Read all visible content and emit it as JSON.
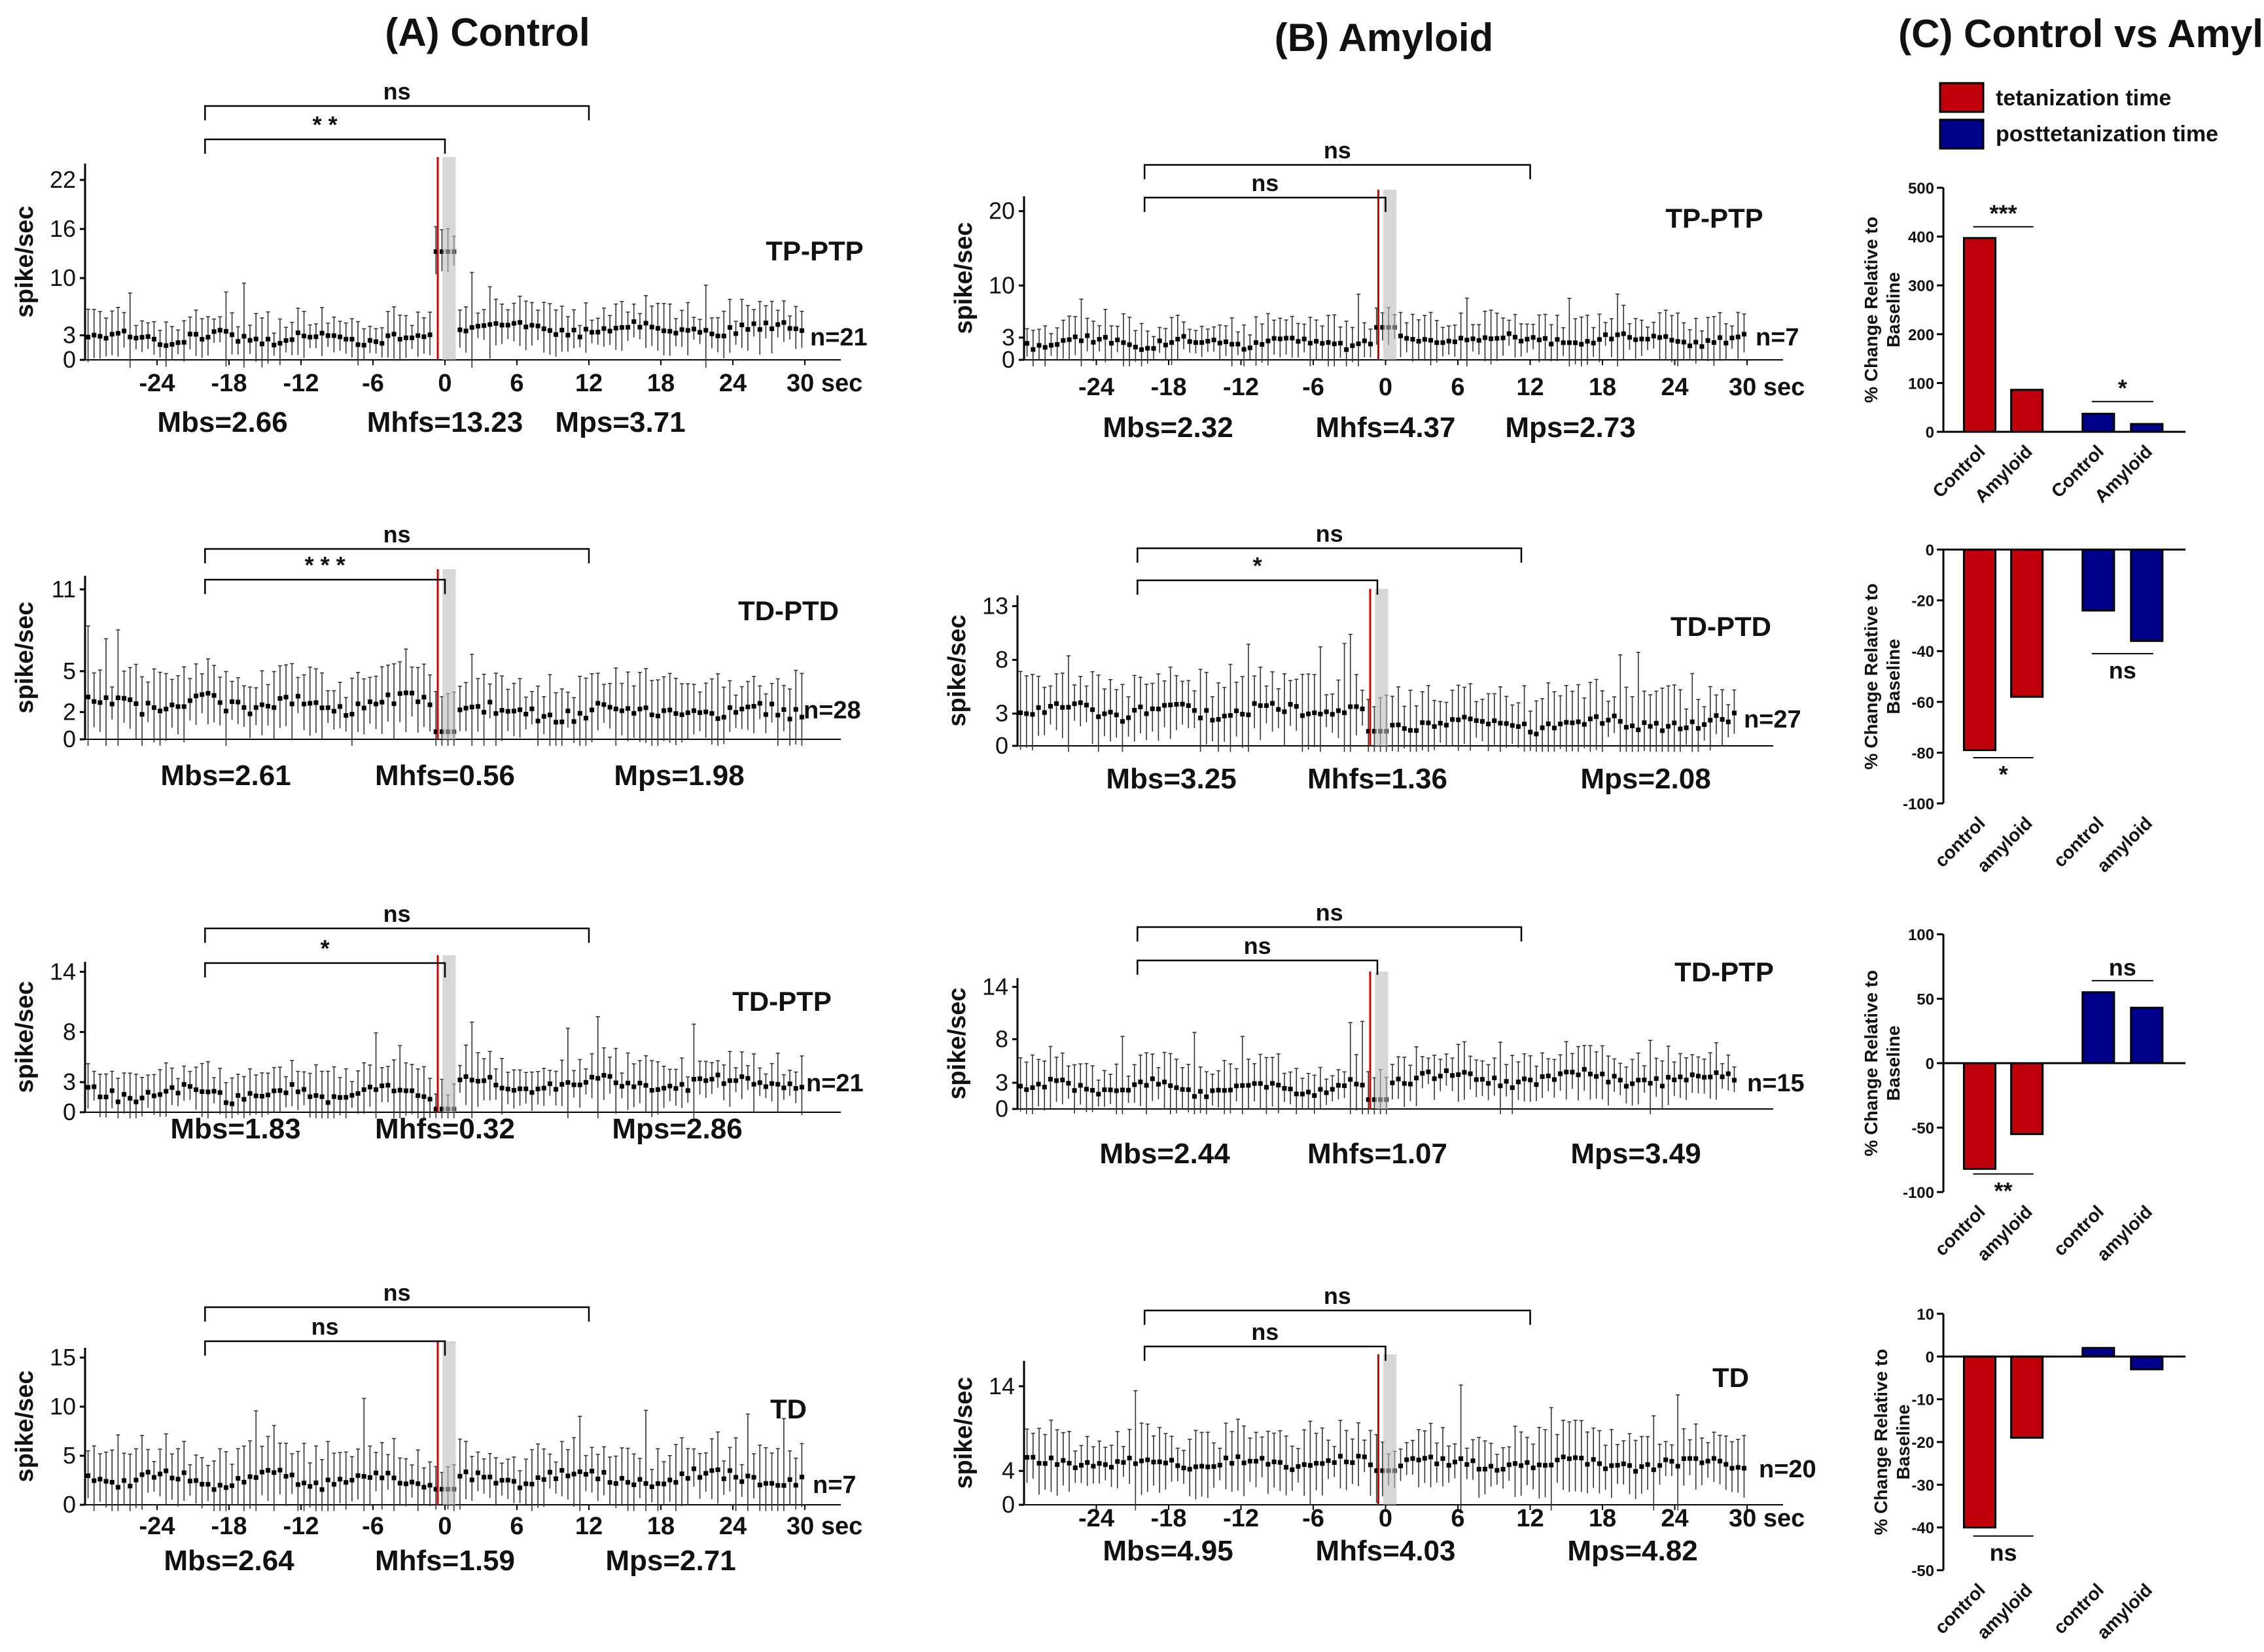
{
  "chart_data": [
    {
      "id": "A1",
      "type": "line",
      "column": "(A) Control",
      "title": "TP-PTP",
      "ylabel": "spike/sec",
      "yticks": [
        0,
        3,
        10,
        16,
        22
      ],
      "ylim": [
        0,
        24
      ],
      "xlim": [
        -30,
        30
      ],
      "xticks": [
        -24,
        -18,
        -12,
        -6,
        0,
        6,
        12,
        18,
        24,
        30
      ],
      "xtick_labels": [
        "-24",
        "-18",
        "-12",
        "-6",
        "0",
        "6",
        "12",
        "18",
        "24",
        "30 sec"
      ],
      "n": "n=21",
      "baseline": 2.66,
      "hfs_peak": 13.23,
      "post": 3.71,
      "wave": 0.5,
      "err": 2.3,
      "labels": {
        "mbs": "Mbs=2.66",
        "mhfs": "Mhfs=13.23",
        "mps": "Mps=3.71"
      },
      "brackets": [
        {
          "label": "ns",
          "from": -20,
          "to": 12
        },
        {
          "label": "* *",
          "from": -20,
          "to": 0
        }
      ]
    },
    {
      "id": "A2",
      "type": "line",
      "column": "(A) Control",
      "title": "TD-PTD",
      "ylabel": "spike/sec",
      "yticks": [
        0,
        2,
        5,
        11
      ],
      "ylim": [
        0,
        12
      ],
      "xlim": [
        -30,
        30
      ],
      "xticks": [],
      "xtick_labels": [],
      "n": "n=28",
      "baseline": 2.61,
      "hfs_peak": 0.56,
      "post": 1.98,
      "wave": 0.4,
      "err": 2.0,
      "labels": {
        "mbs": "Mbs=2.61",
        "mhfs": "Mhfs=0.56",
        "mps": "Mps=1.98"
      },
      "brackets": [
        {
          "label": "ns",
          "from": -20,
          "to": 12
        },
        {
          "label": "* * *",
          "from": -20,
          "to": 0
        }
      ]
    },
    {
      "id": "A3",
      "type": "line",
      "column": "(A) Control",
      "title": "TD-PTP",
      "ylabel": "spike/sec",
      "yticks": [
        0,
        3,
        8,
        14
      ],
      "ylim": [
        0,
        15
      ],
      "xlim": [
        -30,
        30
      ],
      "xticks": [],
      "xtick_labels": [],
      "n": "n=21",
      "baseline": 1.83,
      "hfs_peak": 0.32,
      "post": 2.86,
      "wave": 0.5,
      "err": 2.1,
      "labels": {
        "mbs": "Mbs=1.83",
        "mhfs": "Mhfs=0.32",
        "mps": "Mps=2.86"
      },
      "brackets": [
        {
          "label": "ns",
          "from": -20,
          "to": 12
        },
        {
          "label": "*",
          "from": -20,
          "to": 0
        }
      ]
    },
    {
      "id": "A4",
      "type": "line",
      "column": "(A) Control",
      "title": "TD",
      "ylabel": "spike/sec",
      "yticks": [
        0,
        5,
        10,
        15
      ],
      "ylim": [
        0,
        16
      ],
      "xlim": [
        -30,
        30
      ],
      "xticks": [
        -24,
        -18,
        -12,
        -6,
        0,
        6,
        12,
        18,
        24,
        30
      ],
      "xtick_labels": [
        "-24",
        "-18",
        "-12",
        "-6",
        "0",
        "6",
        "12",
        "18",
        "24",
        "30 sec"
      ],
      "n": "n=7",
      "baseline": 2.64,
      "hfs_peak": 1.59,
      "post": 2.71,
      "wave": 0.6,
      "err": 2.7,
      "labels": {
        "mbs": "Mbs=2.64",
        "mhfs": "Mhfs=1.59",
        "mps": "Mps=2.71"
      },
      "brackets": [
        {
          "label": "ns",
          "from": -20,
          "to": 12
        },
        {
          "label": "ns",
          "from": -20,
          "to": 0
        }
      ]
    },
    {
      "id": "B1",
      "type": "line",
      "column": "(B) Amyloid",
      "title": "TP-PTP",
      "ylabel": "spike/sec",
      "yticks": [
        0,
        3,
        10,
        20
      ],
      "ylim": [
        0,
        22
      ],
      "xlim": [
        -30,
        30
      ],
      "xticks": [
        -24,
        -18,
        -12,
        -6,
        0,
        6,
        12,
        18,
        24,
        30
      ],
      "xtick_labels": [
        "-24",
        "-18",
        "-12",
        "-6",
        "0",
        "6",
        "12",
        "18",
        "24",
        "30 sec"
      ],
      "n": "n=7",
      "baseline": 2.32,
      "hfs_peak": 4.37,
      "post": 2.73,
      "wave": 0.5,
      "err": 2.6,
      "labels": {
        "mbs": "Mbs=2.32",
        "mhfs": "Mhfs=4.37",
        "mps": "Mps=2.73"
      },
      "brackets": [
        {
          "label": "ns",
          "from": -20,
          "to": 12
        },
        {
          "label": "ns",
          "from": -20,
          "to": 0
        }
      ]
    },
    {
      "id": "B2",
      "type": "line",
      "column": "(B) Amyloid",
      "title": "TD-PTD",
      "ylabel": "spike/sec",
      "yticks": [
        0,
        3,
        8,
        13
      ],
      "ylim": [
        0,
        14
      ],
      "xlim": [
        -30,
        30
      ],
      "xticks": [],
      "xtick_labels": [],
      "n": "n=27",
      "baseline": 3.25,
      "hfs_peak": 1.36,
      "post": 2.08,
      "wave": 0.5,
      "err": 2.6,
      "labels": {
        "mbs": "Mbs=3.25",
        "mhfs": "Mhfs=1.36",
        "mps": "Mps=2.08"
      },
      "brackets": [
        {
          "label": "ns",
          "from": -20,
          "to": 12
        },
        {
          "label": "*",
          "from": -20,
          "to": 0
        }
      ]
    },
    {
      "id": "B3",
      "type": "line",
      "column": "(B) Amyloid",
      "title": "TD-PTP",
      "ylabel": "spike/sec",
      "yticks": [
        0,
        3,
        8,
        14
      ],
      "ylim": [
        0,
        15
      ],
      "xlim": [
        -30,
        30
      ],
      "xticks": [],
      "xtick_labels": [],
      "n": "n=15",
      "baseline": 2.44,
      "hfs_peak": 1.07,
      "post": 3.49,
      "wave": 0.6,
      "err": 2.5,
      "labels": {
        "mbs": "Mbs=2.44",
        "mhfs": "Mhfs=1.07",
        "mps": "Mps=3.49"
      },
      "brackets": [
        {
          "label": "ns",
          "from": -20,
          "to": 12
        },
        {
          "label": "ns",
          "from": -20,
          "to": 0
        }
      ]
    },
    {
      "id": "B4",
      "type": "line",
      "column": "(B) Amyloid",
      "title": "TD",
      "ylabel": "spike/sec",
      "yticks": [
        0,
        4,
        14
      ],
      "ylim": [
        0,
        17
      ],
      "xlim": [
        -30,
        30
      ],
      "xticks": [
        -24,
        -18,
        -12,
        -6,
        0,
        6,
        12,
        18,
        24,
        30
      ],
      "xtick_labels": [
        "-24",
        "-18",
        "-12",
        "-6",
        "0",
        "6",
        "12",
        "18",
        "24",
        "30 sec"
      ],
      "n": "n=20",
      "baseline": 4.95,
      "hfs_peak": 4.03,
      "post": 4.82,
      "wave": 0.4,
      "err": 3.0,
      "labels": {
        "mbs": "Mbs=4.95",
        "mhfs": "Mhfs=4.03",
        "mps": "Mps=4.82"
      },
      "brackets": [
        {
          "label": "ns",
          "from": -20,
          "to": 12
        },
        {
          "label": "ns",
          "from": -20,
          "to": 0
        }
      ]
    },
    {
      "id": "C1",
      "type": "bar",
      "column": "(C) Control vs Amyloid",
      "ylabel": [
        "% Change Relative to",
        "Baseline"
      ],
      "ylim": [
        0,
        500
      ],
      "yticks": [
        0,
        100,
        200,
        300,
        400,
        500
      ],
      "categories": [
        "Control",
        "Amyloid",
        "Control",
        "Amyloid"
      ],
      "colors": [
        "#c0000b",
        "#c0000b",
        "#00008b",
        "#00008b"
      ],
      "values": [
        397,
        86,
        37,
        16
      ],
      "sig": [
        {
          "label": "***",
          "from": 0,
          "to": 1,
          "at": 420
        },
        {
          "label": "*",
          "from": 2,
          "to": 3,
          "at": 62
        }
      ]
    },
    {
      "id": "C2",
      "type": "bar",
      "column": "(C) Control vs Amyloid",
      "ylabel": [
        "% Change Relative to",
        "Baseline"
      ],
      "ylim": [
        -100,
        0
      ],
      "yticks": [
        -100,
        -80,
        -60,
        -40,
        -20,
        0
      ],
      "categories": [
        "control",
        "amyloid",
        "control",
        "amyloid"
      ],
      "colors": [
        "#c0000b",
        "#c0000b",
        "#00008b",
        "#00008b"
      ],
      "values": [
        -79,
        -58,
        -24,
        -36
      ],
      "sig": [
        {
          "label": "*",
          "from": 0,
          "to": 1,
          "at": -82,
          "below": true
        },
        {
          "label": "ns",
          "from": 2,
          "to": 3,
          "at": -41,
          "below": true
        }
      ]
    },
    {
      "id": "C3",
      "type": "bar",
      "column": "(C) Control vs Amyloid",
      "ylabel": [
        "% Change Relative to",
        "Baseline"
      ],
      "ylim": [
        -100,
        100
      ],
      "yticks": [
        -100,
        -50,
        0,
        50,
        100
      ],
      "categories": [
        "control",
        "amyloid",
        "control",
        "amyloid"
      ],
      "colors": [
        "#c0000b",
        "#c0000b",
        "#00008b",
        "#00008b"
      ],
      "values": [
        -82,
        -55,
        55,
        43
      ],
      "sig": [
        {
          "label": "**",
          "from": 0,
          "to": 1,
          "at": -86,
          "below": true
        },
        {
          "label": "ns",
          "from": 2,
          "to": 3,
          "at": 64
        }
      ]
    },
    {
      "id": "C4",
      "type": "bar",
      "column": "(C) Control vs Amyloid",
      "ylabel": [
        "% Change Relative to",
        "Baseline"
      ],
      "ylim": [
        -50,
        10
      ],
      "yticks": [
        -50,
        -40,
        -30,
        -20,
        -10,
        0,
        10
      ],
      "categories": [
        "control",
        "amyloid",
        "control",
        "amyloid"
      ],
      "colors": [
        "#c0000b",
        "#c0000b",
        "#00008b",
        "#00008b"
      ],
      "values": [
        -40,
        -19,
        2,
        -3
      ],
      "sig": [
        {
          "label": "ns",
          "from": 0,
          "to": 1,
          "at": -42,
          "below": true
        }
      ]
    }
  ],
  "titles": {
    "a": "(A) Control",
    "b": "(B) Amyloid",
    "c": "(C) Control vs Amyloid"
  },
  "legend": {
    "items": [
      {
        "label": "tetanization time",
        "color": "#c0000b"
      },
      {
        "label": "posttetanization time",
        "color": "#00008b"
      }
    ]
  }
}
